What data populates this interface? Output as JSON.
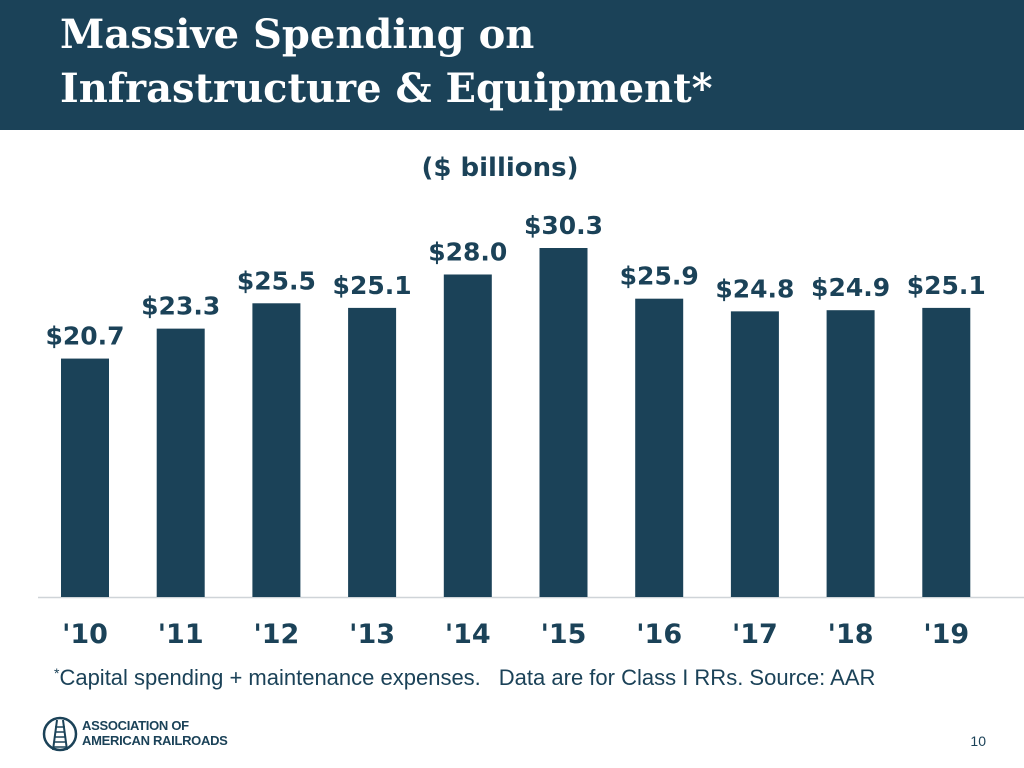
{
  "slide": {
    "title_line1": "Massive Spending on",
    "title_line2": "Infrastructure & Equipment*",
    "footnote_star": "*",
    "footnote_part1": "Capital spending + maintenance expenses.",
    "footnote_part2": "Data are for Class I RRs.  Source: AAR",
    "logo_line1": "ASSOCIATION OF",
    "logo_line2": "AMERICAN RAILROADS",
    "page_number": "10"
  },
  "colors": {
    "header": "#1b4258",
    "bar": "#1b4258",
    "text": "#1b4258",
    "axis": "#cfd4d8"
  },
  "chart_data": {
    "type": "bar",
    "title": "($ billions)",
    "categories": [
      "'10",
      "'11",
      "'12",
      "'13",
      "'14",
      "'15",
      "'16",
      "'17",
      "'18",
      "'19"
    ],
    "values": [
      20.7,
      23.3,
      25.5,
      25.1,
      28.0,
      30.3,
      25.9,
      24.8,
      24.9,
      25.1
    ],
    "data_labels": [
      "$20.7",
      "$23.3",
      "$25.5",
      "$25.1",
      "$28.0",
      "$30.3",
      "$25.9",
      "$24.8",
      "$24.9",
      "$25.1"
    ],
    "xlabel": "",
    "ylabel": "",
    "ylim": [
      0,
      30.3
    ],
    "grid": false,
    "legend": "none"
  }
}
